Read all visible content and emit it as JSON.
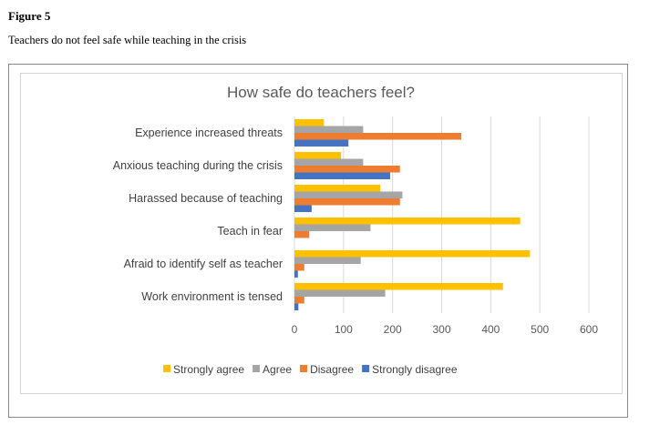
{
  "figure": {
    "label": "Figure 5",
    "caption": "Teachers do not feel safe while teaching in the crisis"
  },
  "chart_data": {
    "type": "bar",
    "orientation": "horizontal",
    "title": "How safe do teachers feel?",
    "categories": [
      "Experience increased threats",
      "Anxious teaching during the crisis",
      "Harassed because of teaching",
      "Teach in fear",
      "Afraid to identify self as teacher",
      "Work environment is tensed"
    ],
    "series": [
      {
        "name": "Strongly agree",
        "color": "#FFC000",
        "values": [
          60,
          95,
          175,
          460,
          480,
          425
        ]
      },
      {
        "name": "Agree",
        "color": "#A5A5A5",
        "values": [
          140,
          140,
          220,
          155,
          135,
          185
        ]
      },
      {
        "name": "Disagree",
        "color": "#ED7D31",
        "values": [
          340,
          215,
          215,
          30,
          20,
          20
        ]
      },
      {
        "name": "Strongly disagree",
        "color": "#4472C4",
        "values": [
          110,
          195,
          35,
          0,
          7,
          8
        ]
      }
    ],
    "xlim": [
      0,
      600
    ],
    "xticks": [
      0,
      100,
      200,
      300,
      400,
      500,
      600
    ],
    "grid": true,
    "legend": "bottom"
  }
}
